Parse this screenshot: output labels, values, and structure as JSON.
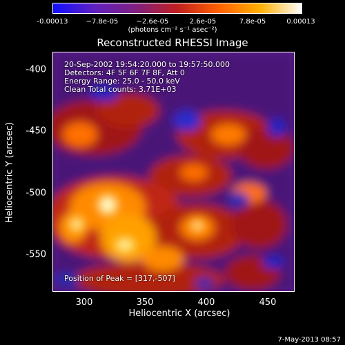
{
  "colorbar": {
    "tick_labels": [
      "-0.00013",
      "−7.8e-05",
      "−2.6e-05",
      "2.6e-05",
      "7.8e-05",
      "0.00013"
    ],
    "unit_label": "(photons cm⁻² s⁻¹ asec⁻²)",
    "colors": [
      "#1010ff",
      "#6020c0",
      "#802080",
      "#c02020",
      "#ff6000",
      "#ffb000",
      "#ffffff"
    ]
  },
  "title": "Reconstructed RHESSI Image",
  "info": {
    "time_range": "20-Sep-2002 19:54:20.000 to 19:57:50.000",
    "detectors": "Detectors: 4F 5F 6F 7F 8F, Att 0",
    "energy": "Energy Range: 25.0 - 50.0 keV",
    "method": "Clean      Total counts: 3.71E+03",
    "peak": "Position of Peak = [317,-507]"
  },
  "axes": {
    "xlabel": "Heliocentric X (arcsec)",
    "ylabel": "Heliocentric Y (arcsec)",
    "x_ticks": [
      "300",
      "350",
      "400",
      "450"
    ],
    "y_ticks": [
      "-400",
      "-450",
      "-500",
      "-550"
    ]
  },
  "footer_date": "7-May-2013 08:57"
}
